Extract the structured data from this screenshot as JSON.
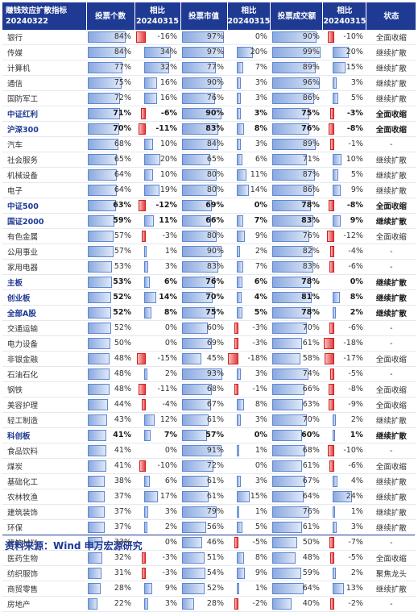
{
  "headers": [
    "赚钱效应扩散指标\n20240322",
    "投票个数",
    "相比\n20240315",
    "投票市值",
    "相比\n20240315",
    "投票成交额",
    "相比\n20240315",
    "状态"
  ],
  "rows": [
    {
      "name": "银行",
      "bold": false,
      "cnt": 84,
      "dcnt": -16,
      "mv": 97,
      "dmv": 0,
      "amt": 90,
      "damt": -10,
      "status": "全面收缩"
    },
    {
      "name": "传媒",
      "bold": false,
      "cnt": 84,
      "dcnt": 34,
      "mv": 97,
      "dmv": 20,
      "amt": 99,
      "damt": 20,
      "status": "继续扩散"
    },
    {
      "name": "计算机",
      "bold": false,
      "cnt": 77,
      "dcnt": 32,
      "mv": 77,
      "dmv": 7,
      "amt": 89,
      "damt": 15,
      "status": "继续扩散"
    },
    {
      "name": "通信",
      "bold": false,
      "cnt": 75,
      "dcnt": 16,
      "mv": 90,
      "dmv": 3,
      "amt": 96,
      "damt": 3,
      "status": "继续扩散"
    },
    {
      "name": "国防军工",
      "bold": false,
      "cnt": 72,
      "dcnt": 16,
      "mv": 76,
      "dmv": 3,
      "amt": 86,
      "damt": 5,
      "status": "继续扩散"
    },
    {
      "name": "中证红利",
      "bold": true,
      "cnt": 71,
      "dcnt": -6,
      "mv": 90,
      "dmv": 3,
      "amt": 75,
      "damt": -3,
      "status": "全面收缩"
    },
    {
      "name": "沪深300",
      "bold": true,
      "cnt": 70,
      "dcnt": -11,
      "mv": 83,
      "dmv": 8,
      "amt": 76,
      "damt": -8,
      "status": "全面收缩"
    },
    {
      "name": "汽车",
      "bold": false,
      "cnt": 68,
      "dcnt": 10,
      "mv": 84,
      "dmv": 3,
      "amt": 89,
      "damt": -1,
      "status": "-"
    },
    {
      "name": "社会服务",
      "bold": false,
      "cnt": 65,
      "dcnt": 20,
      "mv": 65,
      "dmv": 6,
      "amt": 71,
      "damt": 10,
      "status": "继续扩散"
    },
    {
      "name": "机械设备",
      "bold": false,
      "cnt": 64,
      "dcnt": 10,
      "mv": 80,
      "dmv": 11,
      "amt": 87,
      "damt": 5,
      "status": "继续扩散"
    },
    {
      "name": "电子",
      "bold": false,
      "cnt": 64,
      "dcnt": 19,
      "mv": 80,
      "dmv": 14,
      "amt": 86,
      "damt": 9,
      "status": "继续扩散"
    },
    {
      "name": "中证500",
      "bold": true,
      "cnt": 63,
      "dcnt": -12,
      "mv": 69,
      "dmv": 0,
      "amt": 78,
      "damt": -8,
      "status": "全面收缩"
    },
    {
      "name": "国证2000",
      "bold": true,
      "cnt": 59,
      "dcnt": 11,
      "mv": 66,
      "dmv": 7,
      "amt": 83,
      "damt": 9,
      "status": "继续扩散"
    },
    {
      "name": "有色金属",
      "bold": false,
      "cnt": 57,
      "dcnt": -3,
      "mv": 80,
      "dmv": 9,
      "amt": 76,
      "damt": -12,
      "status": "全面收缩"
    },
    {
      "name": "公用事业",
      "bold": false,
      "cnt": 57,
      "dcnt": 1,
      "mv": 90,
      "dmv": 2,
      "amt": 82,
      "damt": -4,
      "status": "-"
    },
    {
      "name": "家用电器",
      "bold": false,
      "cnt": 53,
      "dcnt": 3,
      "mv": 83,
      "dmv": 7,
      "amt": 83,
      "damt": -6,
      "status": "-"
    },
    {
      "name": "主板",
      "bold": true,
      "cnt": 53,
      "dcnt": 6,
      "mv": 76,
      "dmv": 6,
      "amt": 78,
      "damt": 0,
      "status": "继续扩散"
    },
    {
      "name": "创业板",
      "bold": true,
      "cnt": 52,
      "dcnt": 14,
      "mv": 70,
      "dmv": 4,
      "amt": 81,
      "damt": 8,
      "status": "继续扩散"
    },
    {
      "name": "全部A股",
      "bold": true,
      "cnt": 52,
      "dcnt": 8,
      "mv": 75,
      "dmv": 5,
      "amt": 78,
      "damt": 2,
      "status": "继续扩散"
    },
    {
      "name": "交通运输",
      "bold": false,
      "cnt": 52,
      "dcnt": 0,
      "mv": 60,
      "dmv": -3,
      "amt": 70,
      "damt": -6,
      "status": "-"
    },
    {
      "name": "电力设备",
      "bold": false,
      "cnt": 50,
      "dcnt": 0,
      "mv": 69,
      "dmv": -3,
      "amt": 61,
      "damt": -18,
      "status": "-"
    },
    {
      "name": "非银金融",
      "bold": false,
      "cnt": 48,
      "dcnt": -15,
      "mv": 45,
      "dmv": -18,
      "amt": 58,
      "damt": -17,
      "status": "全面收缩"
    },
    {
      "name": "石油石化",
      "bold": false,
      "cnt": 48,
      "dcnt": 2,
      "mv": 93,
      "dmv": 3,
      "amt": 74,
      "damt": -5,
      "status": "-"
    },
    {
      "name": "钢铁",
      "bold": false,
      "cnt": 48,
      "dcnt": -11,
      "mv": 68,
      "dmv": -1,
      "amt": 66,
      "damt": -8,
      "status": "全面收缩"
    },
    {
      "name": "美容护理",
      "bold": false,
      "cnt": 44,
      "dcnt": -4,
      "mv": 67,
      "dmv": 8,
      "amt": 63,
      "damt": -9,
      "status": "全面收缩"
    },
    {
      "name": "轻工制造",
      "bold": false,
      "cnt": 43,
      "dcnt": 12,
      "mv": 61,
      "dmv": 3,
      "amt": 70,
      "damt": 2,
      "status": "继续扩散"
    },
    {
      "name": "科创板",
      "bold": true,
      "cnt": 41,
      "dcnt": 7,
      "mv": 57,
      "dmv": 0,
      "amt": 60,
      "damt": 1,
      "status": "继续扩散"
    },
    {
      "name": "食品饮料",
      "bold": false,
      "cnt": 41,
      "dcnt": 0,
      "mv": 91,
      "dmv": 1,
      "amt": 68,
      "damt": -10,
      "status": "-"
    },
    {
      "name": "煤炭",
      "bold": false,
      "cnt": 41,
      "dcnt": -10,
      "mv": 72,
      "dmv": 0,
      "amt": 61,
      "damt": -6,
      "status": "全面收缩"
    },
    {
      "name": "基础化工",
      "bold": false,
      "cnt": 38,
      "dcnt": 6,
      "mv": 61,
      "dmv": 3,
      "amt": 67,
      "damt": 4,
      "status": "继续扩散"
    },
    {
      "name": "农林牧渔",
      "bold": false,
      "cnt": 37,
      "dcnt": 17,
      "mv": 61,
      "dmv": 15,
      "amt": 64,
      "damt": 24,
      "status": "继续扩散"
    },
    {
      "name": "建筑装饰",
      "bold": false,
      "cnt": 37,
      "dcnt": 3,
      "mv": 79,
      "dmv": 1,
      "amt": 76,
      "damt": 1,
      "status": "继续扩散"
    },
    {
      "name": "环保",
      "bold": false,
      "cnt": 37,
      "dcnt": 2,
      "mv": 56,
      "dmv": 5,
      "amt": 61,
      "damt": 3,
      "status": "继续扩散"
    },
    {
      "name": "建筑材料",
      "bold": false,
      "cnt": 33,
      "dcnt": 0,
      "mv": 46,
      "dmv": -5,
      "amt": 50,
      "damt": -7,
      "status": "-"
    },
    {
      "name": "医药生物",
      "bold": false,
      "cnt": 32,
      "dcnt": -3,
      "mv": 51,
      "dmv": 8,
      "amt": 48,
      "damt": -5,
      "status": "全面收缩"
    },
    {
      "name": "纺织服饰",
      "bold": false,
      "cnt": 31,
      "dcnt": -3,
      "mv": 54,
      "dmv": 9,
      "amt": 59,
      "damt": 2,
      "status": "聚焦龙头"
    },
    {
      "name": "商贸零售",
      "bold": false,
      "cnt": 28,
      "dcnt": 9,
      "mv": 52,
      "dmv": 1,
      "amt": 64,
      "damt": 13,
      "status": "继续扩散"
    },
    {
      "name": "房地产",
      "bold": false,
      "cnt": 22,
      "dcnt": 3,
      "mv": 28,
      "dmv": -2,
      "amt": 40,
      "damt": -2,
      "status": "-"
    }
  ],
  "source": "资料来源：Wind 申万宏源研究",
  "colors": {
    "header": "#1f3a93",
    "pos": "#8aa9e0",
    "neg": "#e43c3c"
  }
}
